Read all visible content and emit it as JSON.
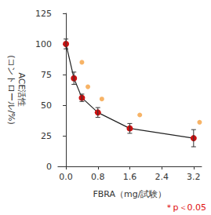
{
  "chart_data": {
    "type": "line",
    "x_label": "FBRA（mg/試験）",
    "y_label": "ACE活性\n(コントロール/%)",
    "annotation": "＊p＜0.05",
    "xlim": [
      -0.2,
      3.4
    ],
    "xticks": [
      {
        "value": 0,
        "label": "0.0"
      },
      {
        "value": 0.8,
        "label": "0.8"
      },
      {
        "value": 1.6,
        "label": "1.6"
      },
      {
        "value": 2.4,
        "label": "2.4"
      },
      {
        "value": 3.2,
        "label": "3.2"
      }
    ],
    "ylim": [
      0,
      125
    ],
    "yticks": [
      0,
      25,
      50,
      75,
      100,
      125
    ],
    "grid": false,
    "series": [
      {
        "type": "line",
        "color": "#cc1010",
        "marker": "circle",
        "x": [
          0,
          0.2,
          0.4,
          0.8,
          1.6,
          3.2
        ],
        "values": [
          100,
          72,
          56,
          44,
          31,
          23
        ],
        "errors": [
          4,
          5,
          3,
          4,
          4,
          7
        ]
      },
      {
        "type": "scatter",
        "color": "#f5a040",
        "marker": "circle",
        "x": [
          0.4,
          0.55,
          0.9,
          1.85,
          3.35
        ],
        "values": [
          85,
          65,
          55,
          42,
          36
        ]
      }
    ]
  }
}
